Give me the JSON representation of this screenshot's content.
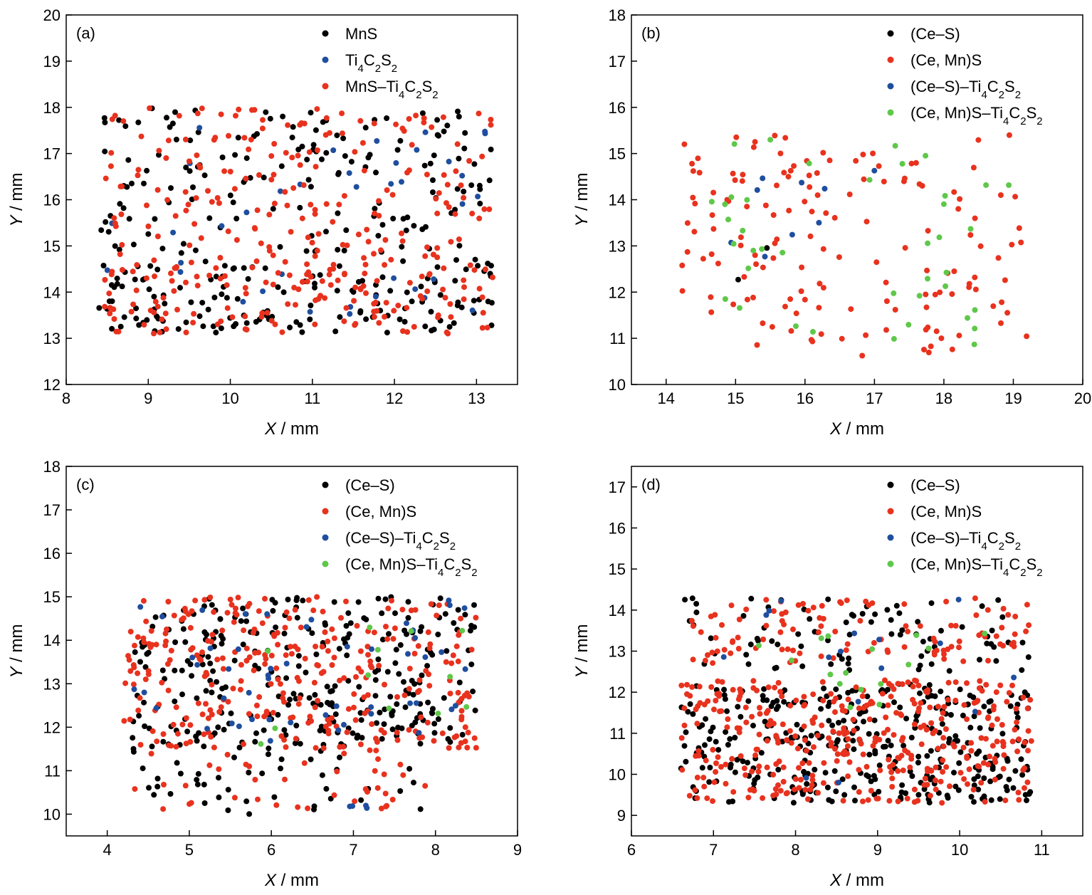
{
  "colors": {
    "black": "#000000",
    "red": "#e8321e",
    "blue": "#1f4e9e",
    "green": "#5fc84a"
  },
  "chart_data": [
    {
      "type": "scatter",
      "panel_label": "(a)",
      "xlabel_var": "X",
      "xlabel_unit": " / mm",
      "ylabel_var": "Y",
      "ylabel_unit": " / mm",
      "xlim": [
        8,
        13.5
      ],
      "ylim": [
        12,
        20
      ],
      "xticks": [
        8,
        9,
        10,
        11,
        12,
        13
      ],
      "yticks": [
        12,
        13,
        14,
        15,
        16,
        17,
        18,
        19,
        20
      ],
      "legend_position": "top-right",
      "series": [
        {
          "name": "MnS",
          "legend": [
            {
              "t": "MnS"
            }
          ],
          "color": "black",
          "count": 300,
          "clusters": [
            [
              8.4,
              13.2,
              13.1,
              14.6,
              0.45
            ],
            [
              8.4,
              13.2,
              14.5,
              18.0,
              0.55
            ]
          ]
        },
        {
          "name": "Ti4C2S2",
          "legend": [
            {
              "t": "Ti"
            },
            {
              "t": "4",
              "s": 1
            },
            {
              "t": "C"
            },
            {
              "t": "2",
              "s": 1
            },
            {
              "t": "S"
            },
            {
              "t": "2",
              "s": 1
            }
          ],
          "color": "blue",
          "count": 38,
          "clusters": [
            [
              8.4,
              13.2,
              13.2,
              17.7,
              1.0
            ]
          ]
        },
        {
          "name": "MnS–Ti4C2S2",
          "legend": [
            {
              "t": "MnS–Ti"
            },
            {
              "t": "4",
              "s": 1
            },
            {
              "t": "C"
            },
            {
              "t": "2",
              "s": 1
            },
            {
              "t": "S"
            },
            {
              "t": "2",
              "s": 1
            }
          ],
          "color": "red",
          "count": 330,
          "clusters": [
            [
              8.4,
              13.2,
              13.1,
              14.6,
              0.4
            ],
            [
              8.4,
              13.2,
              14.5,
              18.0,
              0.6
            ]
          ]
        }
      ]
    },
    {
      "type": "scatter",
      "panel_label": "(b)",
      "xlabel_var": "X",
      "xlabel_unit": " / mm",
      "ylabel_var": "Y",
      "ylabel_unit": " / mm",
      "xlim": [
        13.5,
        20
      ],
      "ylim": [
        10,
        18
      ],
      "xticks": [
        14,
        15,
        16,
        17,
        18,
        19,
        20
      ],
      "yticks": [
        10,
        11,
        12,
        13,
        14,
        15,
        16,
        17,
        18
      ],
      "legend_position": "top-right",
      "series": [
        {
          "name": "(Ce–S)",
          "legend": [
            {
              "t": "(Ce–S)"
            }
          ],
          "color": "black",
          "count": 2,
          "clusters": [
            [
              14.6,
              15.6,
              11.6,
              13.2,
              1.0
            ]
          ]
        },
        {
          "name": "(Ce, Mn)S",
          "legend": [
            {
              "t": "(Ce, Mn)S"
            }
          ],
          "color": "red",
          "count": 150,
          "clusters": [
            [
              14.2,
              19.2,
              10.6,
              15.4,
              1.0
            ]
          ]
        },
        {
          "name": "(Ce–S)–Ti4C2S2",
          "legend": [
            {
              "t": "(Ce–S)–Ti"
            },
            {
              "t": "4",
              "s": 1
            },
            {
              "t": "C"
            },
            {
              "t": "2",
              "s": 1
            },
            {
              "t": "S"
            },
            {
              "t": "2",
              "s": 1
            }
          ],
          "color": "blue",
          "count": 9,
          "clusters": [
            [
              14.7,
              18.1,
              11.7,
              15.1,
              1.0
            ]
          ]
        },
        {
          "name": "(Ce, Mn)S–Ti4C2S2",
          "legend": [
            {
              "t": "(Ce, Mn)S–Ti"
            },
            {
              "t": "4",
              "s": 1
            },
            {
              "t": "C"
            },
            {
              "t": "2",
              "s": 1
            },
            {
              "t": "S"
            },
            {
              "t": "2",
              "s": 1
            }
          ],
          "color": "green",
          "count": 40,
          "clusters": [
            [
              14.6,
              19.0,
              10.7,
              15.3,
              1.0
            ]
          ]
        }
      ]
    },
    {
      "type": "scatter",
      "panel_label": "(c)",
      "xlabel_var": "X",
      "xlabel_unit": " / mm",
      "ylabel_var": "Y",
      "ylabel_unit": " / mm",
      "xlim": [
        3.5,
        9
      ],
      "ylim": [
        9.5,
        18
      ],
      "xticks": [
        4,
        5,
        6,
        7,
        8,
        9
      ],
      "yticks": [
        10,
        11,
        12,
        13,
        14,
        15,
        16,
        17,
        18
      ],
      "legend_position": "top-right",
      "series": [
        {
          "name": "(Ce–S)",
          "legend": [
            {
              "t": "(Ce–S)"
            }
          ],
          "color": "black",
          "count": 330,
          "clusters": [
            [
              4.3,
              8.5,
              11.6,
              15.0,
              0.85
            ],
            [
              4.3,
              8.0,
              10.0,
              11.6,
              0.15
            ]
          ]
        },
        {
          "name": "(Ce, Mn)S",
          "legend": [
            {
              "t": "(Ce, Mn)S"
            }
          ],
          "color": "red",
          "count": 350,
          "clusters": [
            [
              4.2,
              8.5,
              11.5,
              15.0,
              0.9
            ],
            [
              4.3,
              8.0,
              10.1,
              11.6,
              0.1
            ]
          ]
        },
        {
          "name": "(Ce–S)–Ti4C2S2",
          "legend": [
            {
              "t": "(Ce–S)–Ti"
            },
            {
              "t": "4",
              "s": 1
            },
            {
              "t": "C"
            },
            {
              "t": "2",
              "s": 1
            },
            {
              "t": "S"
            },
            {
              "t": "2",
              "s": 1
            }
          ],
          "color": "blue",
          "count": 55,
          "clusters": [
            [
              4.2,
              8.5,
              11.6,
              15.0,
              0.92
            ],
            [
              6.9,
              7.2,
              10.1,
              10.2,
              0.08
            ]
          ]
        },
        {
          "name": "(Ce, Mn)S–Ti4C2S2",
          "legend": [
            {
              "t": "(Ce, Mn)S–Ti"
            },
            {
              "t": "4",
              "s": 1
            },
            {
              "t": "C"
            },
            {
              "t": "2",
              "s": 1
            },
            {
              "t": "S"
            },
            {
              "t": "2",
              "s": 1
            }
          ],
          "color": "green",
          "count": 12,
          "clusters": [
            [
              4.3,
              8.4,
              11.6,
              15.0,
              1.0
            ]
          ]
        }
      ]
    },
    {
      "type": "scatter",
      "panel_label": "(d)",
      "xlabel_var": "X",
      "xlabel_unit": " / mm",
      "ylabel_var": "Y",
      "ylabel_unit": " / mm",
      "xlim": [
        6,
        11.5
      ],
      "ylim": [
        8.5,
        17.5
      ],
      "xticks": [
        6,
        7,
        8,
        9,
        10,
        11
      ],
      "yticks": [
        9,
        10,
        11,
        12,
        13,
        14,
        15,
        16,
        17
      ],
      "legend_position": "top-right",
      "series": [
        {
          "name": "(Ce–S)",
          "legend": [
            {
              "t": "(Ce–S)"
            }
          ],
          "color": "black",
          "count": 420,
          "clusters": [
            [
              6.6,
              10.9,
              9.3,
              12.2,
              0.82
            ],
            [
              6.6,
              10.9,
              12.4,
              14.3,
              0.18
            ]
          ]
        },
        {
          "name": "(Ce, Mn)S",
          "legend": [
            {
              "t": "(Ce, Mn)S"
            }
          ],
          "color": "red",
          "count": 480,
          "clusters": [
            [
              6.6,
              10.9,
              9.3,
              12.3,
              0.8
            ],
            [
              6.6,
              10.9,
              12.7,
              14.3,
              0.2
            ]
          ]
        },
        {
          "name": "(Ce–S)–Ti4C2S2",
          "legend": [
            {
              "t": "(Ce–S)–Ti"
            },
            {
              "t": "4",
              "s": 1
            },
            {
              "t": "C"
            },
            {
              "t": "2",
              "s": 1
            },
            {
              "t": "S"
            },
            {
              "t": "2",
              "s": 1
            }
          ],
          "color": "blue",
          "count": 16,
          "clusters": [
            [
              6.8,
              10.8,
              9.4,
              14.3,
              1.0
            ]
          ]
        },
        {
          "name": "(Ce, Mn)S–Ti4C2S2",
          "legend": [
            {
              "t": "(Ce, Mn)S–Ti"
            },
            {
              "t": "4",
              "s": 1
            },
            {
              "t": "C"
            },
            {
              "t": "2",
              "s": 1
            },
            {
              "t": "S"
            },
            {
              "t": "2",
              "s": 1
            }
          ],
          "color": "green",
          "count": 16,
          "clusters": [
            [
              7.4,
              10.6,
              11.4,
              13.8,
              1.0
            ]
          ]
        }
      ]
    }
  ]
}
